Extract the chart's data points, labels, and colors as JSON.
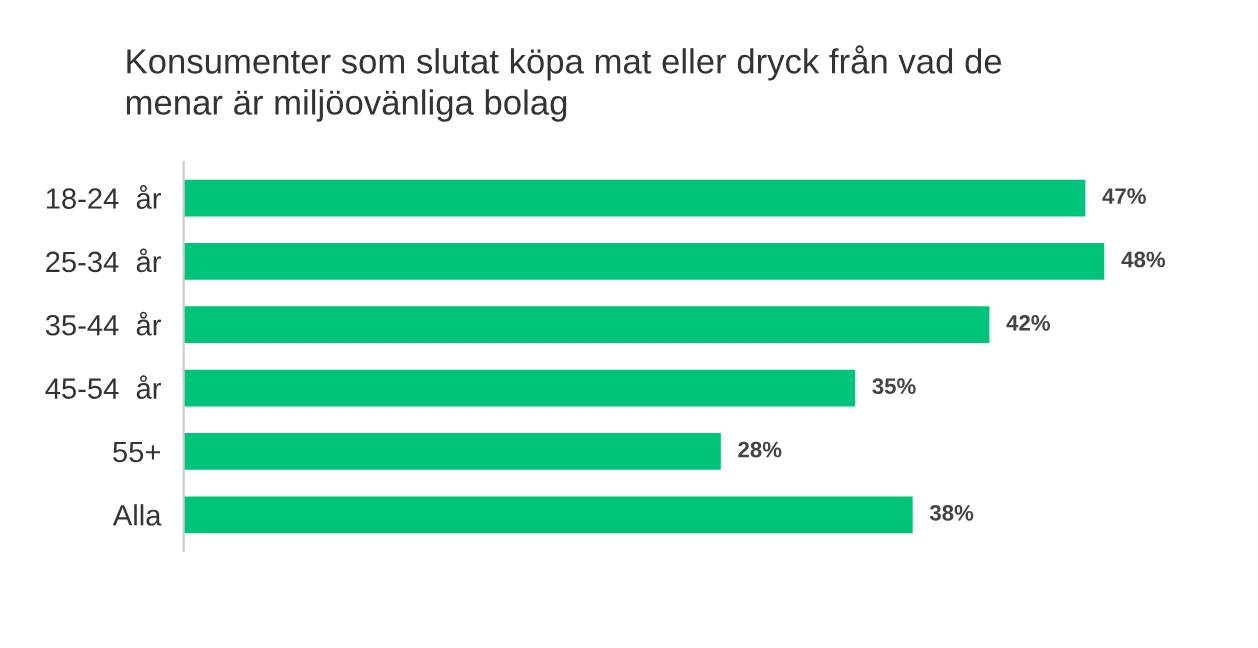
{
  "chart_data": {
    "type": "bar",
    "orientation": "horizontal",
    "title": "Konsumenter som slutat köpa mat eller dryck från vad de\nmenar är miljöovänliga bolag",
    "categories": [
      "18-24  år",
      "25-34  år",
      "35-44  år",
      "45-54  år",
      "55+",
      "Alla"
    ],
    "values": [
      47,
      48,
      42,
      35,
      28,
      38
    ],
    "value_labels": [
      "47%",
      "48%",
      "42%",
      "35%",
      "28%",
      "38%"
    ],
    "color": "#00c47a",
    "tick_labels": "y",
    "grid": false,
    "legend": false
  }
}
